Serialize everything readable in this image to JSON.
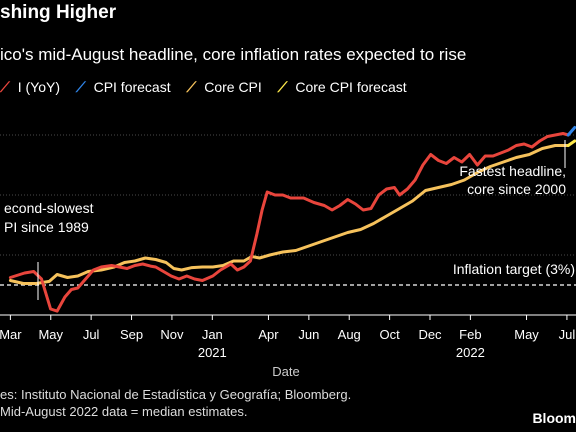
{
  "title": "shing Higher",
  "subtitle": "ico's mid-August headline, core inflation rates expected to rise",
  "legend": [
    {
      "label": "I (YoY)",
      "color": "#e8453c",
      "icon": "diagonal-line-icon"
    },
    {
      "label": "CPI forecast",
      "color": "#2f83e6",
      "icon": "diagonal-line-icon"
    },
    {
      "label": "Core CPI",
      "color": "#f6c25c",
      "icon": "diagonal-line-icon"
    },
    {
      "label": "Core CPI forecast",
      "color": "#fde84a",
      "icon": "diagonal-line-icon"
    }
  ],
  "annotations": {
    "second_slowest_l1": "econd-slowest",
    "second_slowest_l2": "PI since 1989",
    "fastest_l1": "Fastest headline,",
    "fastest_l2": "core since 2000",
    "target": "Inflation target (3%)"
  },
  "source": "es: Instituto Nacional de Estadística y Geografía; Bloomberg.",
  "note": "Mid-August 2022 data = median estimates.",
  "brand": "Bloom",
  "chart_data": {
    "type": "line",
    "xlabel": "Date",
    "x_tick_labels": [
      "Mar",
      "May",
      "Jul",
      "Sep",
      "Nov",
      "Jan",
      "Apr",
      "Jun",
      "Aug",
      "Oct",
      "Dec",
      "Feb",
      "May",
      "Jul"
    ],
    "year_labels": [
      {
        "label": "2021",
        "under": "Jan"
      },
      {
        "label": "2022",
        "under": "Feb"
      }
    ],
    "ylim": [
      2.0,
      9.0
    ],
    "target_line": 3,
    "series": [
      {
        "name": "I (YoY)",
        "color": "#e8453c",
        "values": [
          [
            0.0,
            3.25
          ],
          [
            0.55,
            3.4
          ],
          [
            0.9,
            3.45
          ],
          [
            1.2,
            3.2
          ],
          [
            1.55,
            2.2
          ],
          [
            1.8,
            2.13
          ],
          [
            2.1,
            2.6
          ],
          [
            2.35,
            2.85
          ],
          [
            2.6,
            2.9
          ],
          [
            2.9,
            3.2
          ],
          [
            3.2,
            3.5
          ],
          [
            3.5,
            3.6
          ],
          [
            3.9,
            3.65
          ],
          [
            4.2,
            3.6
          ],
          [
            4.5,
            3.55
          ],
          [
            4.8,
            3.65
          ],
          [
            5.1,
            3.7
          ],
          [
            5.4,
            3.63
          ],
          [
            5.6,
            3.6
          ],
          [
            5.9,
            3.45
          ],
          [
            6.2,
            3.3
          ],
          [
            6.5,
            3.2
          ],
          [
            6.8,
            3.3
          ],
          [
            7.1,
            3.2
          ],
          [
            7.4,
            3.15
          ],
          [
            7.8,
            3.3
          ],
          [
            8.1,
            3.5
          ],
          [
            8.5,
            3.7
          ],
          [
            8.75,
            3.5
          ],
          [
            9.0,
            3.6
          ],
          [
            9.25,
            3.8
          ],
          [
            9.5,
            4.7
          ],
          [
            9.7,
            5.5
          ],
          [
            9.9,
            6.1
          ],
          [
            10.2,
            6.0
          ],
          [
            10.5,
            6.0
          ],
          [
            10.8,
            5.9
          ],
          [
            11.3,
            5.9
          ],
          [
            11.7,
            5.75
          ],
          [
            12.1,
            5.65
          ],
          [
            12.4,
            5.5
          ],
          [
            12.7,
            5.65
          ],
          [
            13.0,
            5.85
          ],
          [
            13.3,
            5.7
          ],
          [
            13.6,
            5.5
          ],
          [
            13.9,
            5.55
          ],
          [
            14.2,
            6.0
          ],
          [
            14.5,
            6.2
          ],
          [
            14.8,
            6.25
          ],
          [
            15.0,
            6.0
          ],
          [
            15.3,
            6.2
          ],
          [
            15.6,
            6.5
          ],
          [
            15.9,
            7.0
          ],
          [
            16.2,
            7.35
          ],
          [
            16.5,
            7.15
          ],
          [
            16.8,
            7.05
          ],
          [
            17.1,
            7.25
          ],
          [
            17.4,
            7.1
          ],
          [
            17.7,
            7.35
          ],
          [
            18.0,
            7.0
          ],
          [
            18.3,
            7.3
          ],
          [
            18.6,
            7.3
          ],
          [
            18.9,
            7.4
          ],
          [
            19.2,
            7.5
          ],
          [
            19.5,
            7.65
          ],
          [
            19.8,
            7.7
          ],
          [
            20.1,
            7.6
          ],
          [
            20.4,
            7.8
          ],
          [
            20.7,
            7.95
          ],
          [
            21.0,
            8.0
          ],
          [
            21.3,
            8.05
          ],
          [
            21.5,
            8.0
          ]
        ]
      },
      {
        "name": "CPI forecast",
        "color": "#2f83e6",
        "values": [
          [
            21.5,
            8.0
          ],
          [
            21.75,
            8.25
          ]
        ]
      },
      {
        "name": "Core CPI",
        "color": "#f6c25c",
        "values": [
          [
            0.0,
            3.15
          ],
          [
            0.5,
            3.05
          ],
          [
            1.0,
            3.05
          ],
          [
            1.5,
            3.12
          ],
          [
            1.8,
            3.35
          ],
          [
            2.2,
            3.25
          ],
          [
            2.6,
            3.3
          ],
          [
            3.0,
            3.45
          ],
          [
            3.5,
            3.5
          ],
          [
            4.0,
            3.6
          ],
          [
            4.4,
            3.75
          ],
          [
            4.8,
            3.8
          ],
          [
            5.2,
            3.9
          ],
          [
            5.6,
            3.85
          ],
          [
            6.0,
            3.75
          ],
          [
            6.3,
            3.55
          ],
          [
            6.6,
            3.5
          ],
          [
            7.0,
            3.58
          ],
          [
            7.4,
            3.6
          ],
          [
            7.8,
            3.6
          ],
          [
            8.2,
            3.65
          ],
          [
            8.6,
            3.8
          ],
          [
            9.0,
            3.8
          ],
          [
            9.3,
            3.95
          ],
          [
            9.6,
            3.9
          ],
          [
            10.0,
            4.0
          ],
          [
            10.5,
            4.1
          ],
          [
            11.0,
            4.15
          ],
          [
            11.5,
            4.3
          ],
          [
            12.0,
            4.45
          ],
          [
            12.5,
            4.6
          ],
          [
            13.0,
            4.75
          ],
          [
            13.5,
            4.85
          ],
          [
            14.0,
            5.05
          ],
          [
            14.5,
            5.3
          ],
          [
            15.0,
            5.55
          ],
          [
            15.5,
            5.8
          ],
          [
            16.0,
            6.15
          ],
          [
            16.5,
            6.25
          ],
          [
            17.0,
            6.35
          ],
          [
            17.5,
            6.5
          ],
          [
            18.0,
            6.75
          ],
          [
            18.5,
            6.95
          ],
          [
            19.0,
            7.1
          ],
          [
            19.5,
            7.25
          ],
          [
            20.0,
            7.35
          ],
          [
            20.5,
            7.55
          ],
          [
            21.0,
            7.65
          ],
          [
            21.5,
            7.65
          ]
        ]
      },
      {
        "name": "Core CPI forecast",
        "color": "#fde84a",
        "values": [
          [
            21.5,
            7.65
          ],
          [
            21.75,
            7.8
          ]
        ]
      }
    ]
  }
}
